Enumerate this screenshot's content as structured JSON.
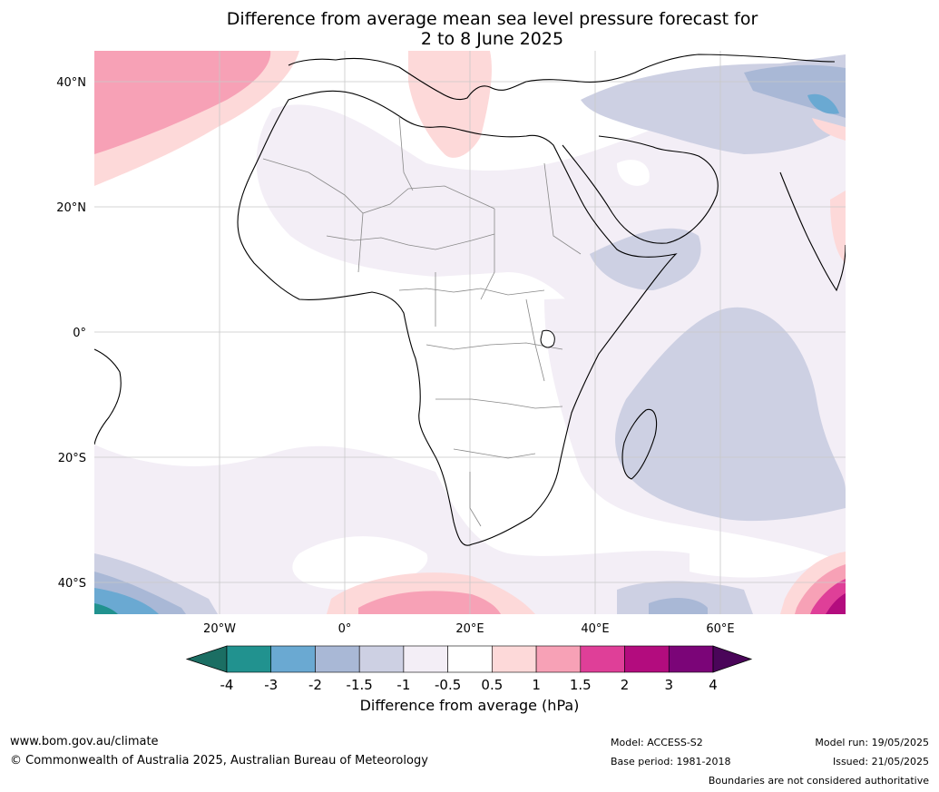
{
  "title_line1": "Difference from average mean sea level pressure forecast for",
  "title_line2": "2 to 8 June 2025",
  "lat_labels": [
    "40°N",
    "20°N",
    "0°",
    "20°S",
    "40°S"
  ],
  "lon_labels": [
    "20°W",
    "0°",
    "20°E",
    "40°E",
    "60°E"
  ],
  "colorbar": {
    "title": "Difference from average (hPa)",
    "ticks": [
      "-4",
      "-3",
      "-2",
      "-1.5",
      "-1",
      "-0.5",
      "0.5",
      "1",
      "1.5",
      "2",
      "3",
      "4"
    ],
    "colors": [
      "#1b6e63",
      "#21928f",
      "#6aa9d2",
      "#a9b8d6",
      "#cdd0e3",
      "#f3eef6",
      "#ffffff",
      "#fdd9d9",
      "#f7a1b6",
      "#df3f98",
      "#b30c7e",
      "#7b0578",
      "#4a0559"
    ]
  },
  "footer": {
    "url": "www.bom.gov.au/climate",
    "copyright": "© Commonwealth of Australia 2025, Australian Bureau of Meteorology",
    "model": "Model: ACCESS-S2",
    "base_period": "Base period: 1981-2018",
    "model_run": "Model run: 19/05/2025",
    "issued": "Issued: 21/05/2025",
    "boundaries": "Boundaries are not considered authoritative"
  }
}
